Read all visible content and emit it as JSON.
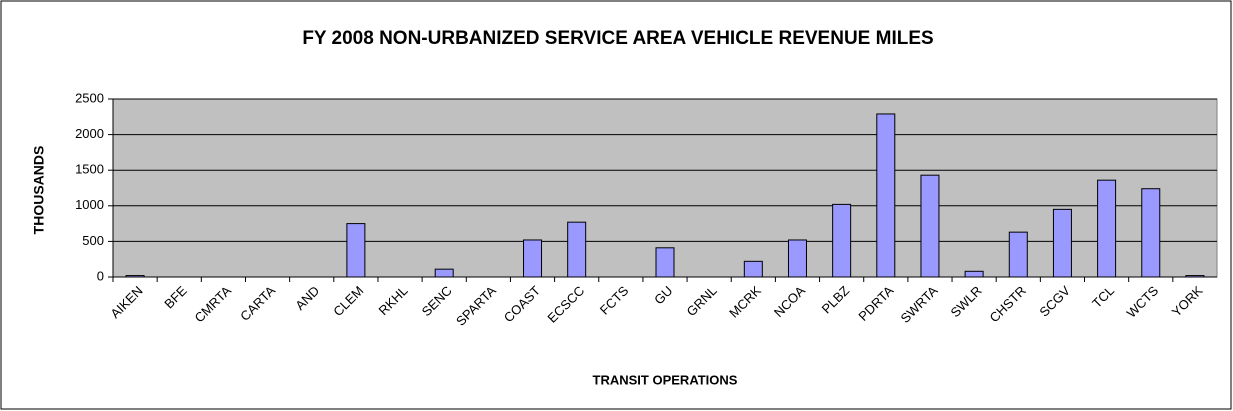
{
  "chart_data": {
    "type": "bar",
    "title": "FY 2008 NON-URBANIZED SERVICE AREA VEHICLE REVENUE MILES",
    "y_label": "THOUSANDS",
    "x_label": "TRANSIT OPERATIONS",
    "categories": [
      "AIKEN",
      "BFE",
      "CMRTA",
      "CARTA",
      "AND",
      "CLEM",
      "RKHL",
      "SENC",
      "SPARTA",
      "COAST",
      "ECSCC",
      "FCTS",
      "GU",
      "GRNL",
      "MCRK",
      "NCOA",
      "PLBZ",
      "PDRTA",
      "SWRTA",
      "SWLR",
      "CHSTR",
      "SCGV",
      "TCL",
      "WCTS",
      "YORK"
    ],
    "values": [
      20,
      0,
      0,
      0,
      0,
      750,
      0,
      110,
      0,
      520,
      770,
      0,
      410,
      0,
      220,
      520,
      1020,
      2290,
      1430,
      80,
      630,
      950,
      1360,
      1240,
      20
    ],
    "color": "#9999ff",
    "ylim": [
      0,
      2500
    ],
    "yticks": [
      0,
      500,
      1000,
      1500,
      2000,
      2500
    ],
    "grid": true
  }
}
